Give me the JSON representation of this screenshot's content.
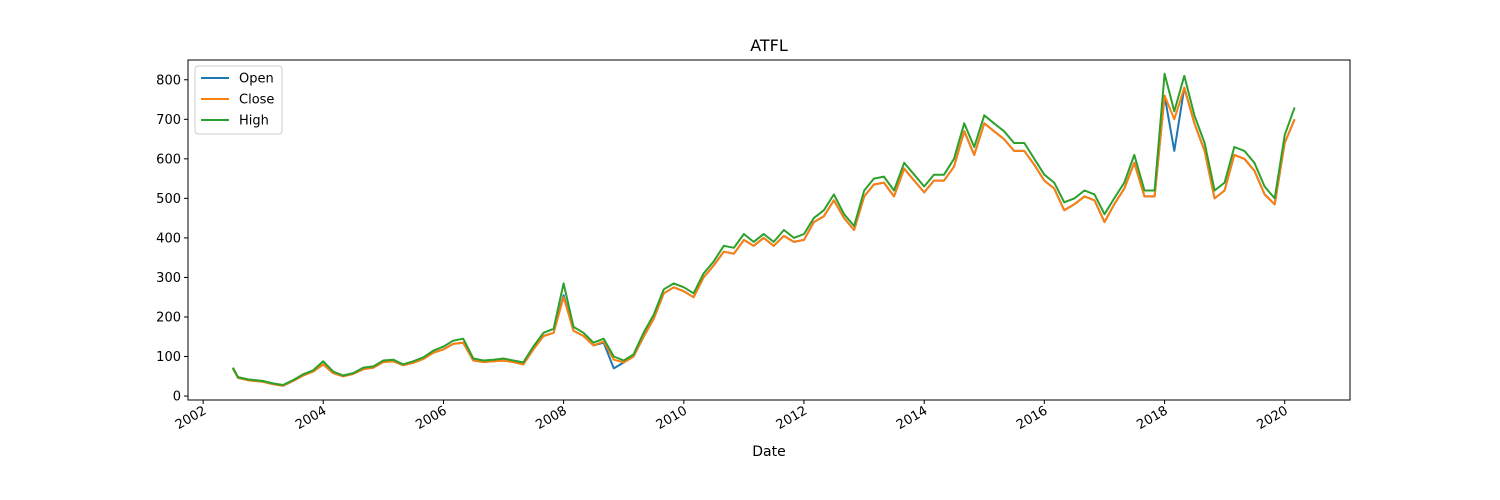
{
  "chart_data": {
    "type": "line",
    "title": "ATFL",
    "xlabel": "Date",
    "ylabel": "",
    "xlim": [
      "2001-10-01",
      "2021-02-01"
    ],
    "ylim": [
      -10,
      850
    ],
    "x_ticks": [
      "2002",
      "2004",
      "2006",
      "2008",
      "2010",
      "2012",
      "2014",
      "2016",
      "2018",
      "2020"
    ],
    "y_ticks": [
      0,
      100,
      200,
      300,
      400,
      500,
      600,
      700,
      800
    ],
    "grid": false,
    "legend_position": "upper-left",
    "colors": {
      "Open": "#1f77b4",
      "Close": "#ff7f0e",
      "High": "#2ca02c"
    },
    "series": [
      {
        "name": "Open",
        "color": "#1f77b4"
      },
      {
        "name": "Close",
        "color": "#ff7f0e"
      },
      {
        "name": "High",
        "color": "#2ca02c"
      }
    ],
    "x": [
      "2002-07-01",
      "2002-08-01",
      "2002-10-01",
      "2003-01-01",
      "2003-03-01",
      "2003-05-01",
      "2003-07-01",
      "2003-09-01",
      "2003-11-01",
      "2004-01-01",
      "2004-03-01",
      "2004-05-01",
      "2004-07-01",
      "2004-09-01",
      "2004-11-01",
      "2005-01-01",
      "2005-03-01",
      "2005-05-01",
      "2005-07-01",
      "2005-09-01",
      "2005-11-01",
      "2006-01-01",
      "2006-03-01",
      "2006-05-01",
      "2006-07-01",
      "2006-09-01",
      "2006-11-01",
      "2007-01-01",
      "2007-03-01",
      "2007-05-01",
      "2007-07-01",
      "2007-09-01",
      "2007-11-01",
      "2008-01-01",
      "2008-03-01",
      "2008-05-01",
      "2008-07-01",
      "2008-09-01",
      "2008-11-01",
      "2009-01-01",
      "2009-03-01",
      "2009-05-01",
      "2009-07-01",
      "2009-09-01",
      "2009-11-01",
      "2010-01-01",
      "2010-03-01",
      "2010-05-01",
      "2010-07-01",
      "2010-09-01",
      "2010-11-01",
      "2011-01-01",
      "2011-03-01",
      "2011-05-01",
      "2011-07-01",
      "2011-09-01",
      "2011-11-01",
      "2012-01-01",
      "2012-03-01",
      "2012-05-01",
      "2012-07-01",
      "2012-09-01",
      "2012-11-01",
      "2013-01-01",
      "2013-03-01",
      "2013-05-01",
      "2013-07-01",
      "2013-09-01",
      "2013-11-01",
      "2014-01-01",
      "2014-03-01",
      "2014-05-01",
      "2014-07-01",
      "2014-09-01",
      "2014-11-01",
      "2015-01-01",
      "2015-03-01",
      "2015-05-01",
      "2015-07-01",
      "2015-09-01",
      "2015-11-01",
      "2016-01-01",
      "2016-03-01",
      "2016-05-01",
      "2016-07-01",
      "2016-09-01",
      "2016-11-01",
      "2017-01-01",
      "2017-03-01",
      "2017-05-01",
      "2017-07-01",
      "2017-09-01",
      "2017-11-01",
      "2018-01-01",
      "2018-03-01",
      "2018-05-01",
      "2018-07-01",
      "2018-09-01",
      "2018-11-01",
      "2019-01-01",
      "2019-03-01",
      "2019-05-01",
      "2019-07-01",
      "2019-09-01",
      "2019-11-01",
      "2020-01-01",
      "2020-03-01"
    ],
    "high": [
      72,
      48,
      42,
      38,
      32,
      28,
      40,
      55,
      65,
      88,
      62,
      52,
      58,
      72,
      75,
      90,
      92,
      80,
      88,
      98,
      115,
      125,
      140,
      145,
      95,
      90,
      92,
      95,
      90,
      85,
      125,
      160,
      170,
      285,
      175,
      160,
      135,
      145,
      100,
      90,
      105,
      160,
      205,
      270,
      285,
      275,
      260,
      310,
      340,
      380,
      375,
      410,
      390,
      410,
      390,
      420,
      400,
      410,
      450,
      470,
      510,
      460,
      430,
      520,
      550,
      555,
      520,
      590,
      560,
      530,
      560,
      560,
      600,
      690,
      630,
      710,
      690,
      670,
      640,
      640,
      600,
      560,
      540,
      490,
      500,
      520,
      510,
      460,
      500,
      540,
      610,
      520,
      520,
      815,
      720,
      810,
      710,
      640,
      520,
      540,
      630,
      620,
      590,
      530,
      500,
      660,
      730
    ],
    "close": [
      70,
      46,
      40,
      36,
      30,
      26,
      38,
      52,
      62,
      80,
      58,
      50,
      56,
      68,
      72,
      86,
      88,
      78,
      84,
      94,
      110,
      118,
      132,
      135,
      90,
      86,
      88,
      90,
      86,
      80,
      118,
      152,
      160,
      250,
      165,
      152,
      128,
      138,
      92,
      85,
      100,
      150,
      195,
      260,
      275,
      265,
      250,
      300,
      330,
      365,
      360,
      395,
      380,
      400,
      380,
      405,
      390,
      395,
      440,
      455,
      495,
      450,
      420,
      505,
      535,
      540,
      505,
      575,
      545,
      515,
      545,
      545,
      580,
      670,
      610,
      690,
      670,
      650,
      620,
      620,
      585,
      545,
      525,
      470,
      485,
      505,
      495,
      440,
      485,
      525,
      590,
      505,
      505,
      760,
      700,
      780,
      690,
      620,
      500,
      520,
      610,
      600,
      570,
      510,
      485,
      640,
      700
    ],
    "open": [
      70,
      46,
      40,
      36,
      30,
      26,
      38,
      52,
      62,
      80,
      58,
      50,
      56,
      68,
      72,
      86,
      88,
      78,
      84,
      94,
      110,
      118,
      132,
      135,
      90,
      86,
      88,
      90,
      86,
      80,
      118,
      152,
      160,
      255,
      165,
      152,
      128,
      135,
      70,
      85,
      100,
      150,
      195,
      260,
      275,
      265,
      250,
      300,
      330,
      365,
      360,
      395,
      380,
      400,
      380,
      405,
      390,
      395,
      440,
      455,
      495,
      450,
      420,
      505,
      535,
      540,
      505,
      575,
      545,
      515,
      545,
      545,
      580,
      670,
      610,
      690,
      670,
      650,
      620,
      620,
      585,
      545,
      525,
      470,
      485,
      505,
      495,
      440,
      485,
      525,
      590,
      505,
      505,
      760,
      620,
      780,
      690,
      620,
      500,
      520,
      610,
      600,
      570,
      510,
      485,
      640,
      700
    ]
  }
}
